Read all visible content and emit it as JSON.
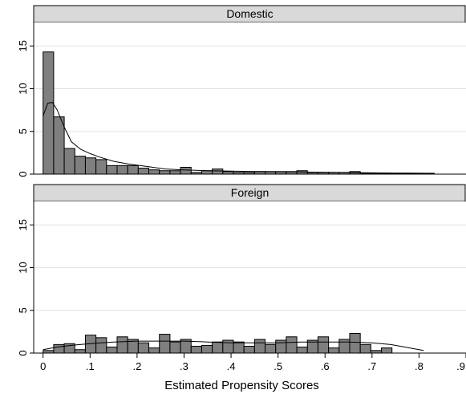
{
  "chart_data": {
    "type": "bar",
    "xlabel": "Estimated Propensity Scores",
    "ylabel": "",
    "xlim": [
      -0.02,
      0.9
    ],
    "ylim": [
      0,
      17
    ],
    "x_ticks": [
      0,
      0.1,
      0.2,
      0.3,
      0.4,
      0.5,
      0.6,
      0.7,
      0.8,
      0.9
    ],
    "x_tick_labels": [
      "0",
      ".1",
      ".2",
      ".3",
      ".4",
      ".5",
      ".6",
      ".7",
      ".8",
      ".9"
    ],
    "y_ticks": [
      0,
      5,
      10,
      15
    ],
    "y_tick_labels": [
      "0",
      "5",
      "10",
      "15"
    ],
    "bin_start": 0,
    "bin_width": 0.0225,
    "grid": true,
    "bar_color": "#7f7f7f",
    "bar_edge_color": "#000000",
    "strip_color": "#d9d9d9",
    "panels": [
      {
        "title": "Domestic",
        "bars": [
          14.3,
          6.7,
          3.0,
          2.1,
          1.9,
          1.7,
          1.0,
          1.0,
          1.0,
          0.7,
          0.5,
          0.4,
          0.4,
          0.8,
          0.2,
          0.4,
          0.6,
          0.3,
          0.2,
          0.2,
          0.3,
          0.3,
          0.3,
          0.3,
          0.4,
          0.2,
          0.2,
          0.2,
          0.2,
          0.3,
          0.1,
          0.1,
          0.1,
          0.1,
          0.1,
          0.1,
          0.1
        ],
        "density": [
          [
            0,
            6.8
          ],
          [
            0.01,
            8.3
          ],
          [
            0.02,
            8.4
          ],
          [
            0.03,
            7.5
          ],
          [
            0.045,
            5.5
          ],
          [
            0.06,
            3.8
          ],
          [
            0.08,
            2.9
          ],
          [
            0.1,
            2.4
          ],
          [
            0.12,
            2.0
          ],
          [
            0.15,
            1.5
          ],
          [
            0.18,
            1.2
          ],
          [
            0.22,
            0.9
          ],
          [
            0.26,
            0.6
          ],
          [
            0.3,
            0.5
          ],
          [
            0.35,
            0.4
          ],
          [
            0.4,
            0.35
          ],
          [
            0.45,
            0.3
          ],
          [
            0.5,
            0.28
          ],
          [
            0.55,
            0.25
          ],
          [
            0.6,
            0.22
          ],
          [
            0.65,
            0.18
          ],
          [
            0.7,
            0.15
          ],
          [
            0.75,
            0.12
          ],
          [
            0.8,
            0.1
          ],
          [
            0.83,
            0.08
          ]
        ]
      },
      {
        "title": "Foreign",
        "bars": [
          0.3,
          1.0,
          1.1,
          0.4,
          2.1,
          1.8,
          0.7,
          1.9,
          1.6,
          1.2,
          0.6,
          2.2,
          1.3,
          1.6,
          0.8,
          0.9,
          1.3,
          1.5,
          1.3,
          0.8,
          1.6,
          1.0,
          1.5,
          1.9,
          0.7,
          1.5,
          1.9,
          0.6,
          1.6,
          2.3,
          1.0,
          0.3,
          0.6
        ],
        "density": [
          [
            0,
            0.4
          ],
          [
            0.03,
            0.7
          ],
          [
            0.06,
            0.9
          ],
          [
            0.1,
            1.1
          ],
          [
            0.15,
            1.3
          ],
          [
            0.2,
            1.4
          ],
          [
            0.25,
            1.4
          ],
          [
            0.3,
            1.4
          ],
          [
            0.35,
            1.3
          ],
          [
            0.4,
            1.2
          ],
          [
            0.45,
            1.2
          ],
          [
            0.5,
            1.2
          ],
          [
            0.55,
            1.3
          ],
          [
            0.6,
            1.3
          ],
          [
            0.65,
            1.3
          ],
          [
            0.7,
            1.2
          ],
          [
            0.74,
            1.0
          ],
          [
            0.77,
            0.7
          ],
          [
            0.8,
            0.4
          ],
          [
            0.81,
            0.3
          ]
        ]
      }
    ]
  }
}
